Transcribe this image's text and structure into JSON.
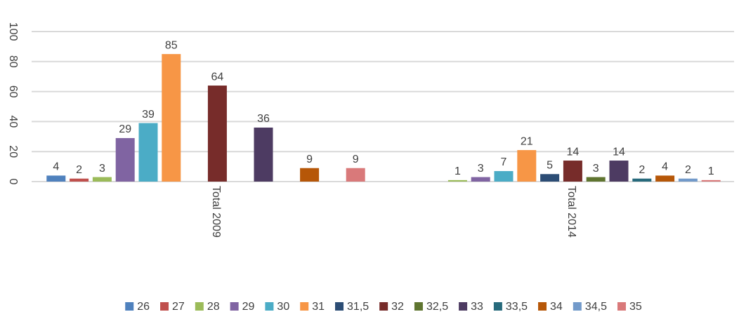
{
  "chart_data": {
    "type": "bar",
    "categories": [
      "Total 2009",
      "Total 2014"
    ],
    "series": [
      {
        "name": "26",
        "color": "#4f81bd",
        "values": [
          4,
          null
        ]
      },
      {
        "name": "27",
        "color": "#c0504d",
        "values": [
          2,
          null
        ]
      },
      {
        "name": "28",
        "color": "#9bbb59",
        "values": [
          3,
          1
        ]
      },
      {
        "name": "29",
        "color": "#8064a2",
        "values": [
          29,
          3
        ]
      },
      {
        "name": "30",
        "color": "#4bacc6",
        "values": [
          39,
          7
        ]
      },
      {
        "name": "31",
        "color": "#f79646",
        "values": [
          85,
          21
        ]
      },
      {
        "name": "31,5",
        "color": "#2c4d75",
        "values": [
          null,
          5
        ]
      },
      {
        "name": "32",
        "color": "#772c2a",
        "values": [
          64,
          14
        ]
      },
      {
        "name": "32,5",
        "color": "#5f7530",
        "values": [
          null,
          3
        ]
      },
      {
        "name": "33",
        "color": "#4d3b62",
        "values": [
          36,
          14
        ]
      },
      {
        "name": "33,5",
        "color": "#276a7c",
        "values": [
          null,
          2
        ]
      },
      {
        "name": "34",
        "color": "#b65708",
        "values": [
          9,
          4
        ]
      },
      {
        "name": "34,5",
        "color": "#729aca",
        "values": [
          null,
          2
        ]
      },
      {
        "name": "35",
        "color": "#d9797a",
        "values": [
          9,
          1
        ]
      }
    ],
    "ylim": [
      0,
      100
    ],
    "yticks": [
      0,
      20,
      40,
      60,
      80,
      100
    ],
    "grid": true,
    "legend": "bottom"
  }
}
